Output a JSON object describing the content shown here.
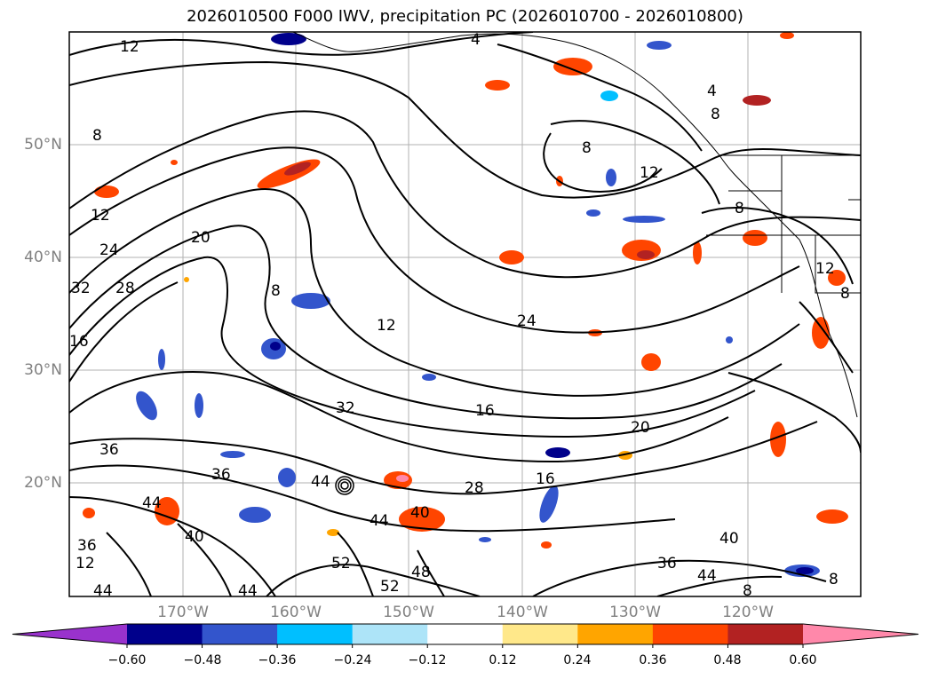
{
  "title": "2026010500 F000 IWV, precipitation PC (2026010700 - 2026010800)",
  "lat_labels": [
    "50°N",
    "40°N",
    "30°N",
    "20°N"
  ],
  "lon_labels": [
    "170°W",
    "160°W",
    "150°W",
    "140°W",
    "130°W",
    "120°W"
  ],
  "contour_labels": [
    "12",
    "4",
    "4",
    "8",
    "8",
    "8",
    "8",
    "12",
    "12",
    "12",
    "8",
    "24",
    "20",
    "32",
    "28",
    "16",
    "8",
    "12",
    "24",
    "16",
    "20",
    "16",
    "32",
    "36",
    "36",
    "44",
    "44",
    "40",
    "44",
    "40",
    "28",
    "52",
    "48",
    "40",
    "36",
    "44",
    "44",
    "44",
    "36",
    "52",
    "8",
    "12",
    "8"
  ],
  "colorbar": {
    "ticks": [
      "−0.60",
      "−0.48",
      "−0.36",
      "−0.24",
      "−0.12",
      "0.12",
      "0.24",
      "0.36",
      "0.48",
      "0.60"
    ],
    "colors": [
      "#9932cc",
      "#00008b",
      "#3355cc",
      "#00bfff",
      "#ade4f8",
      "#ffffff",
      "#ffe88a",
      "#ffa500",
      "#ff4500",
      "#b22222",
      "#ff88aa"
    ]
  },
  "colors": {
    "grid": "#b0b0b0",
    "tick_label": "#808080",
    "contour": "#000000"
  }
}
